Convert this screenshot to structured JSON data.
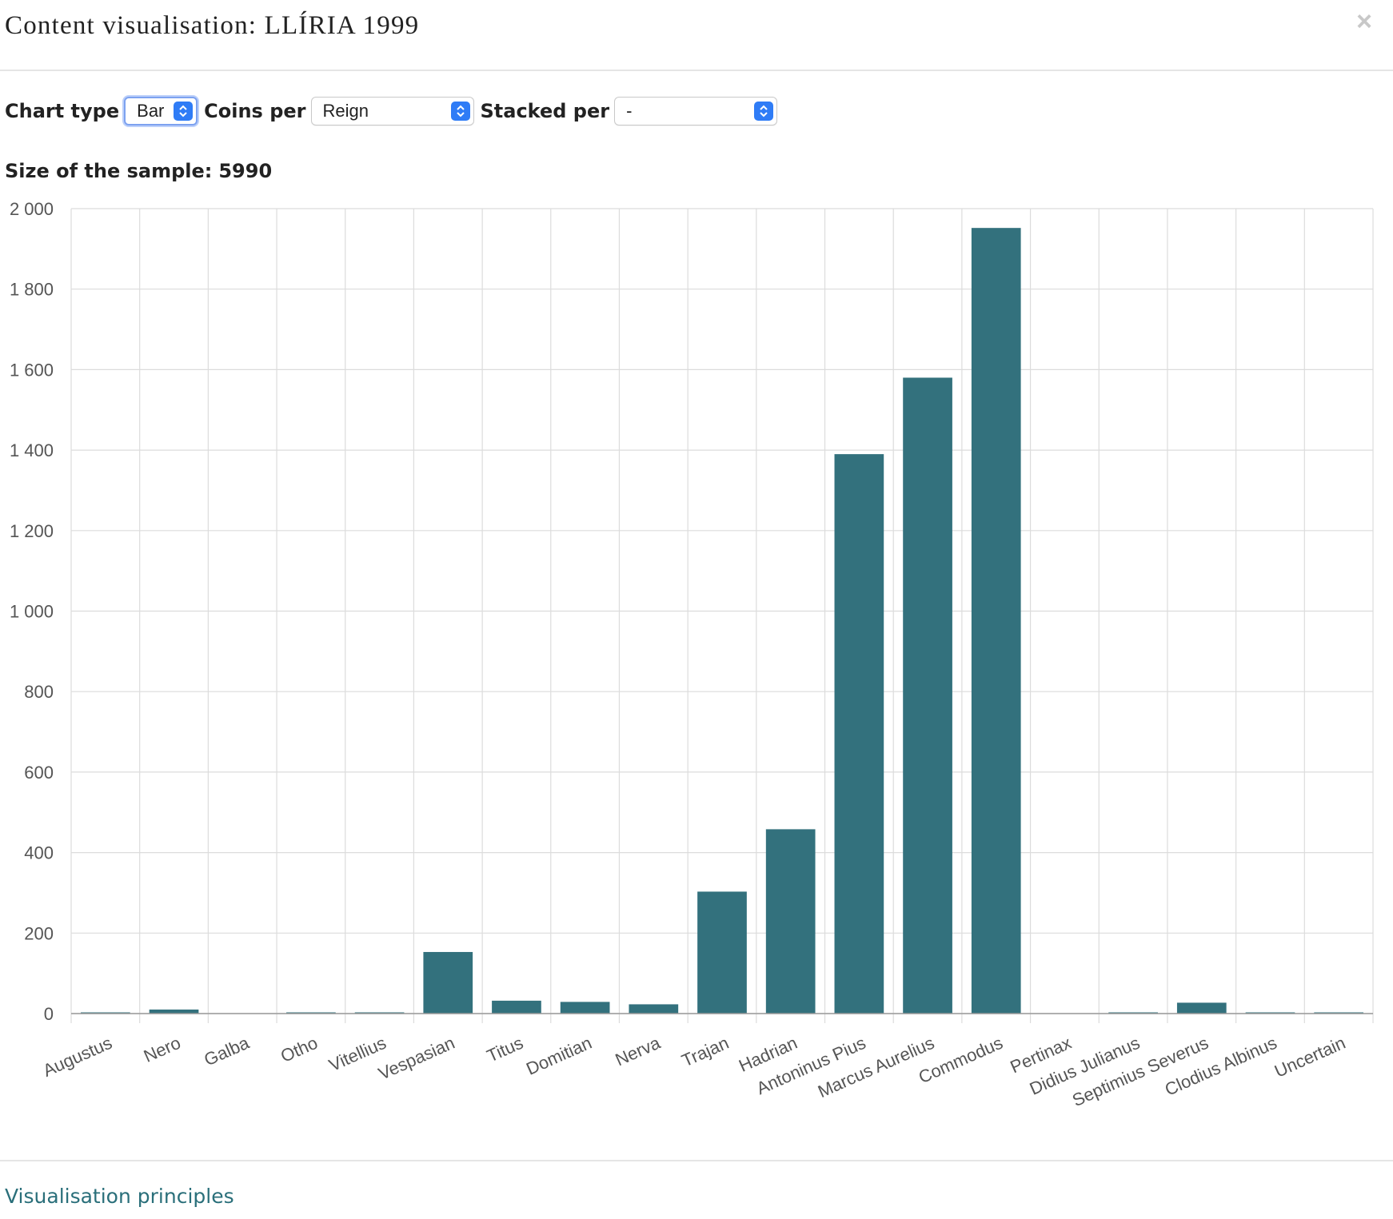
{
  "modal": {
    "title": "Content visualisation: LLÍRIA 1999",
    "close_glyph": "×"
  },
  "controls": {
    "chart_type_label": "Chart type",
    "chart_type_value": "Bar",
    "coins_per_label": "Coins per",
    "coins_per_value": "Reign",
    "stacked_per_label": "Stacked per",
    "stacked_per_value": "-"
  },
  "sample": {
    "label": "Size of the sample:",
    "value": "5990"
  },
  "footer": {
    "link_label": "Visualisation principles"
  },
  "colors": {
    "bar": "#33717d",
    "grid": "#dcdcdc",
    "select_button": "#2f7cf6",
    "link": "#2a6f7a"
  },
  "icons": {
    "close": "close-icon",
    "select": "chevron-up-down-icon"
  },
  "chart_data": {
    "type": "bar",
    "title": "",
    "xlabel": "",
    "ylabel": "",
    "ylim": [
      0,
      2000
    ],
    "yticks": [
      0,
      200,
      400,
      600,
      800,
      1000,
      1200,
      1400,
      1600,
      1800,
      2000
    ],
    "ytick_labels": [
      "0",
      "200",
      "400",
      "600",
      "800",
      "1 000",
      "1 200",
      "1 400",
      "1 600",
      "1 800",
      "2 000"
    ],
    "grid": true,
    "legend": "none",
    "categories": [
      "Augustus",
      "Nero",
      "Galba",
      "Otho",
      "Vitellius",
      "Vespasian",
      "Titus",
      "Domitian",
      "Nerva",
      "Trajan",
      "Hadrian",
      "Antoninus Pius",
      "Marcus Aurelius",
      "Commodus",
      "Pertinax",
      "Didius Julianus",
      "Septimius Severus",
      "Clodius Albinus",
      "Uncertain"
    ],
    "values": [
      1,
      10,
      0,
      2,
      3,
      153,
      32,
      29,
      23,
      303,
      458,
      1390,
      1580,
      1952,
      0,
      2,
      27,
      1,
      1
    ]
  }
}
